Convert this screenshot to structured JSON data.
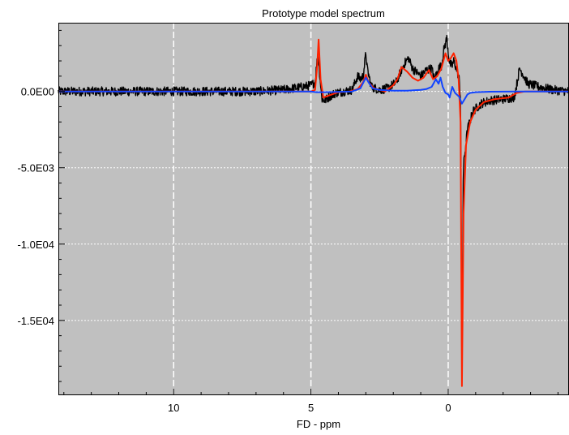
{
  "chart_data": {
    "type": "line",
    "title": "Prototype model spectrum",
    "xlabel": "FD - ppm",
    "ylabel": "",
    "x_reversed": true,
    "xlim": [
      14.2,
      -4.4
    ],
    "ylim": [
      -19900,
      4500
    ],
    "x_ticks": [
      {
        "value": 10,
        "label": "10"
      },
      {
        "value": 5,
        "label": "5"
      },
      {
        "value": 0,
        "label": "0"
      }
    ],
    "y_ticks": [
      {
        "value": 0,
        "label": "0.0E00"
      },
      {
        "value": -5000,
        "label": "-5.0E03"
      },
      {
        "value": -10000,
        "label": "-1.0E04"
      },
      {
        "value": -15000,
        "label": "-1.5E04"
      }
    ],
    "grid": true,
    "background": "#c0c0c0",
    "grid_color": "#ffffff",
    "series": [
      {
        "color": "#000000",
        "noise": 300,
        "points": [
          [
            14.2,
            0
          ],
          [
            13.0,
            0
          ],
          [
            11.0,
            0
          ],
          [
            9.0,
            0
          ],
          [
            7.0,
            0
          ],
          [
            6.0,
            100
          ],
          [
            5.3,
            300
          ],
          [
            5.0,
            400
          ],
          [
            4.85,
            600
          ],
          [
            4.75,
            2500
          ],
          [
            4.7,
            1500
          ],
          [
            4.6,
            -500
          ],
          [
            4.5,
            -600
          ],
          [
            4.3,
            -300
          ],
          [
            4.1,
            -100
          ],
          [
            3.8,
            0
          ],
          [
            3.5,
            100
          ],
          [
            3.3,
            1000
          ],
          [
            3.2,
            800
          ],
          [
            3.1,
            1000
          ],
          [
            3.0,
            2500
          ],
          [
            2.95,
            1500
          ],
          [
            2.8,
            300
          ],
          [
            2.5,
            100
          ],
          [
            2.2,
            200
          ],
          [
            1.9,
            600
          ],
          [
            1.6,
            1800
          ],
          [
            1.45,
            2200
          ],
          [
            1.3,
            1500
          ],
          [
            1.0,
            1000
          ],
          [
            0.8,
            1400
          ],
          [
            0.6,
            1500
          ],
          [
            0.5,
            800
          ],
          [
            0.35,
            1500
          ],
          [
            0.25,
            1700
          ],
          [
            0.15,
            2800
          ],
          [
            0.05,
            3500
          ],
          [
            -0.05,
            1800
          ],
          [
            -0.15,
            1700
          ],
          [
            -0.2,
            2000
          ],
          [
            -0.3,
            1500
          ],
          [
            -0.4,
            800
          ],
          [
            -0.45,
            -500
          ],
          [
            -0.5,
            -19800
          ],
          [
            -0.55,
            -5000
          ],
          [
            -0.7,
            -2500
          ],
          [
            -0.9,
            -1300
          ],
          [
            -1.2,
            -800
          ],
          [
            -1.5,
            -600
          ],
          [
            -2.0,
            -500
          ],
          [
            -2.4,
            -400
          ],
          [
            -2.5,
            500
          ],
          [
            -2.6,
            1500
          ],
          [
            -2.7,
            1200
          ],
          [
            -2.9,
            500
          ],
          [
            -3.3,
            300
          ],
          [
            -3.8,
            100
          ],
          [
            -4.4,
            0
          ]
        ]
      },
      {
        "color": "#ff2200",
        "noise": 0,
        "points": [
          [
            14.2,
            0
          ],
          [
            6.0,
            0
          ],
          [
            5.0,
            0
          ],
          [
            4.85,
            100
          ],
          [
            4.78,
            1500
          ],
          [
            4.72,
            3400
          ],
          [
            4.65,
            800
          ],
          [
            4.55,
            -400
          ],
          [
            4.4,
            -300
          ],
          [
            4.0,
            -50
          ],
          [
            3.6,
            0
          ],
          [
            3.3,
            150
          ],
          [
            3.1,
            600
          ],
          [
            3.0,
            1100
          ],
          [
            2.9,
            600
          ],
          [
            2.7,
            200
          ],
          [
            2.3,
            0
          ],
          [
            2.0,
            400
          ],
          [
            1.85,
            800
          ],
          [
            1.7,
            1600
          ],
          [
            1.5,
            1300
          ],
          [
            1.3,
            900
          ],
          [
            1.1,
            700
          ],
          [
            0.9,
            900
          ],
          [
            0.7,
            1400
          ],
          [
            0.55,
            800
          ],
          [
            0.4,
            1000
          ],
          [
            0.25,
            1500
          ],
          [
            0.1,
            2500
          ],
          [
            -0.0,
            2000
          ],
          [
            -0.1,
            2200
          ],
          [
            -0.2,
            2500
          ],
          [
            -0.3,
            2000
          ],
          [
            -0.38,
            800
          ],
          [
            -0.45,
            -2000
          ],
          [
            -0.5,
            -19300
          ],
          [
            -0.56,
            -8000
          ],
          [
            -0.65,
            -3500
          ],
          [
            -0.8,
            -2000
          ],
          [
            -1.0,
            -1200
          ],
          [
            -1.3,
            -700
          ],
          [
            -1.7,
            -500
          ],
          [
            -2.2,
            -400
          ],
          [
            -2.5,
            -100
          ],
          [
            -2.8,
            0
          ],
          [
            -4.4,
            0
          ]
        ]
      },
      {
        "color": "#1144ff",
        "noise": 0,
        "points": [
          [
            14.2,
            0
          ],
          [
            5.0,
            0
          ],
          [
            4.8,
            -50
          ],
          [
            4.5,
            -50
          ],
          [
            3.5,
            0
          ],
          [
            3.2,
            200
          ],
          [
            3.0,
            900
          ],
          [
            2.9,
            600
          ],
          [
            2.75,
            200
          ],
          [
            2.5,
            100
          ],
          [
            2.0,
            50
          ],
          [
            1.5,
            50
          ],
          [
            1.0,
            100
          ],
          [
            0.8,
            150
          ],
          [
            0.6,
            300
          ],
          [
            0.45,
            800
          ],
          [
            0.35,
            500
          ],
          [
            0.28,
            900
          ],
          [
            0.2,
            300
          ],
          [
            0.1,
            -100
          ],
          [
            0.0,
            -200
          ],
          [
            -0.05,
            -400
          ],
          [
            -0.15,
            300
          ],
          [
            -0.25,
            -100
          ],
          [
            -0.4,
            -350
          ],
          [
            -0.5,
            -800
          ],
          [
            -0.6,
            -500
          ],
          [
            -0.7,
            -200
          ],
          [
            -0.8,
            -100
          ],
          [
            -1.0,
            -50
          ],
          [
            -1.5,
            -20
          ],
          [
            -2.5,
            0
          ],
          [
            -4.4,
            0
          ]
        ]
      }
    ]
  }
}
